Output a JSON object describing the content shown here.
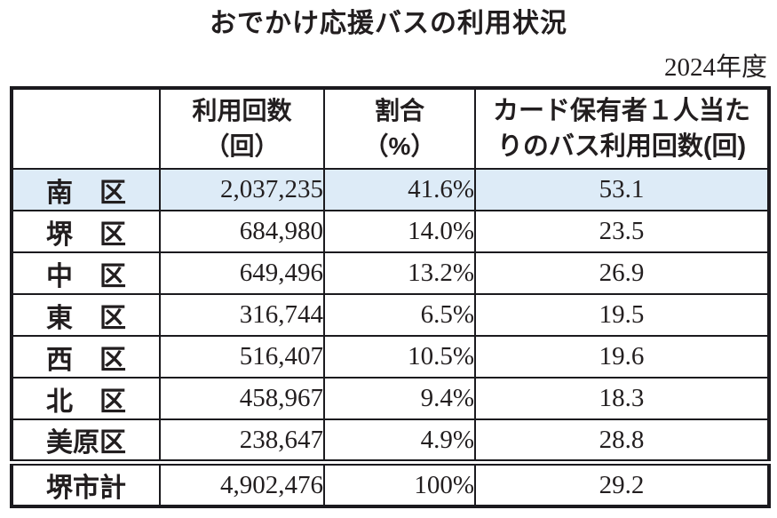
{
  "page": {
    "title": "おでかけ応援バスの利用状況",
    "fiscal_year": "2024年度"
  },
  "table": {
    "headers": {
      "region": "",
      "usage": [
        "利用回数",
        "（回）"
      ],
      "ratio": [
        "割合",
        "（%）"
      ],
      "per_holder": [
        "カード保有者１人当た",
        "りのバス利用回数(回)"
      ]
    },
    "rows": [
      {
        "region": "南　区",
        "usage": "2,037,235",
        "ratio": "41.6%",
        "per_holder": "53.1"
      },
      {
        "region": "堺　区",
        "usage": "684,980",
        "ratio": "14.0%",
        "per_holder": "23.5"
      },
      {
        "region": "中　区",
        "usage": "649,496",
        "ratio": "13.2%",
        "per_holder": "26.9"
      },
      {
        "region": "東　区",
        "usage": "316,744",
        "ratio": "6.5%",
        "per_holder": "19.5"
      },
      {
        "region": "西　区",
        "usage": "516,407",
        "ratio": "10.5%",
        "per_holder": "19.6"
      },
      {
        "region": "北　区",
        "usage": "458,967",
        "ratio": "9.4%",
        "per_holder": "18.3"
      },
      {
        "region": "美原区",
        "usage": "238,647",
        "ratio": "4.9%",
        "per_holder": "28.8"
      }
    ],
    "total": {
      "region": "堺市計",
      "usage": "4,902,476",
      "ratio": "100%",
      "per_holder": "29.2"
    }
  },
  "colors": {
    "highlight_bg": "#ddebf7",
    "border": "#1b1a1e",
    "text": "#221e1f"
  },
  "chart_data": {
    "type": "table",
    "title": "おでかけ応援バスの利用状況",
    "subtitle": "2024年度",
    "columns": [
      "",
      "利用回数（回）",
      "割合（%）",
      "カード保有者１人当たりのバス利用回数(回)"
    ],
    "rows": [
      [
        "南区",
        2037235,
        "41.6%",
        53.1
      ],
      [
        "堺区",
        684980,
        "14.0%",
        23.5
      ],
      [
        "中区",
        649496,
        "13.2%",
        26.9
      ],
      [
        "東区",
        316744,
        "6.5%",
        19.5
      ],
      [
        "西区",
        516407,
        "10.5%",
        19.6
      ],
      [
        "北区",
        458967,
        "9.4%",
        18.3
      ],
      [
        "美原区",
        238647,
        "4.9%",
        28.8
      ],
      [
        "堺市計",
        4902476,
        "100%",
        29.2
      ]
    ],
    "highlighted_row": "南区",
    "notes": "Last row 堺市計 is the city total, separated by a double rule"
  }
}
